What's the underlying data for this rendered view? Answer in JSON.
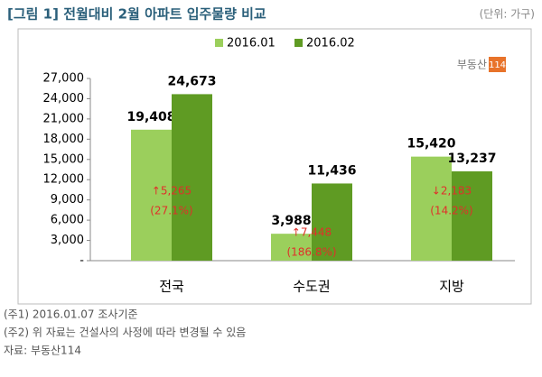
{
  "chart_data": {
    "type": "bar",
    "title": "[그림 1] 전월대비 2월 아파트 입주물량 비교",
    "unit": "(단위: 가구)",
    "logo": {
      "name": "부동산",
      "number": "114"
    },
    "categories": [
      "전국",
      "수도권",
      "지방"
    ],
    "series": [
      {
        "name": "2016.01",
        "color": "#9bcf5c",
        "values": [
          19408,
          3988,
          15420
        ],
        "value_labels": [
          "19,408",
          "3,988",
          "15,420"
        ]
      },
      {
        "name": "2016.02",
        "color": "#5f9b23",
        "values": [
          24673,
          11436,
          13237
        ],
        "value_labels": [
          "24,673",
          "11,436",
          "13,237"
        ]
      }
    ],
    "ylim": [
      0,
      27000
    ],
    "yticks": [
      {
        "value": 0,
        "label": "-"
      },
      {
        "value": 3000,
        "label": "3,000"
      },
      {
        "value": 6000,
        "label": "6,000"
      },
      {
        "value": 9000,
        "label": "9,000"
      },
      {
        "value": 12000,
        "label": "12,000"
      },
      {
        "value": 15000,
        "label": "15,000"
      },
      {
        "value": 18000,
        "label": "18,000"
      },
      {
        "value": 21000,
        "label": "21,000"
      },
      {
        "value": 24000,
        "label": "24,000"
      },
      {
        "value": 27000,
        "label": "27,000"
      }
    ],
    "annotations": [
      {
        "change": "↑5,265",
        "rate": "(27.1%)"
      },
      {
        "change": "↑7,448",
        "rate": "(186.8%)"
      },
      {
        "change": "↓2,183",
        "rate": "(14.2%)"
      }
    ],
    "notes": [
      "(주1) 2016.01.07 조사기준",
      "(주2) 위 자료는 건설사의 사정에 따라 변경될 수 있음",
      "자료: 부동산114"
    ]
  }
}
